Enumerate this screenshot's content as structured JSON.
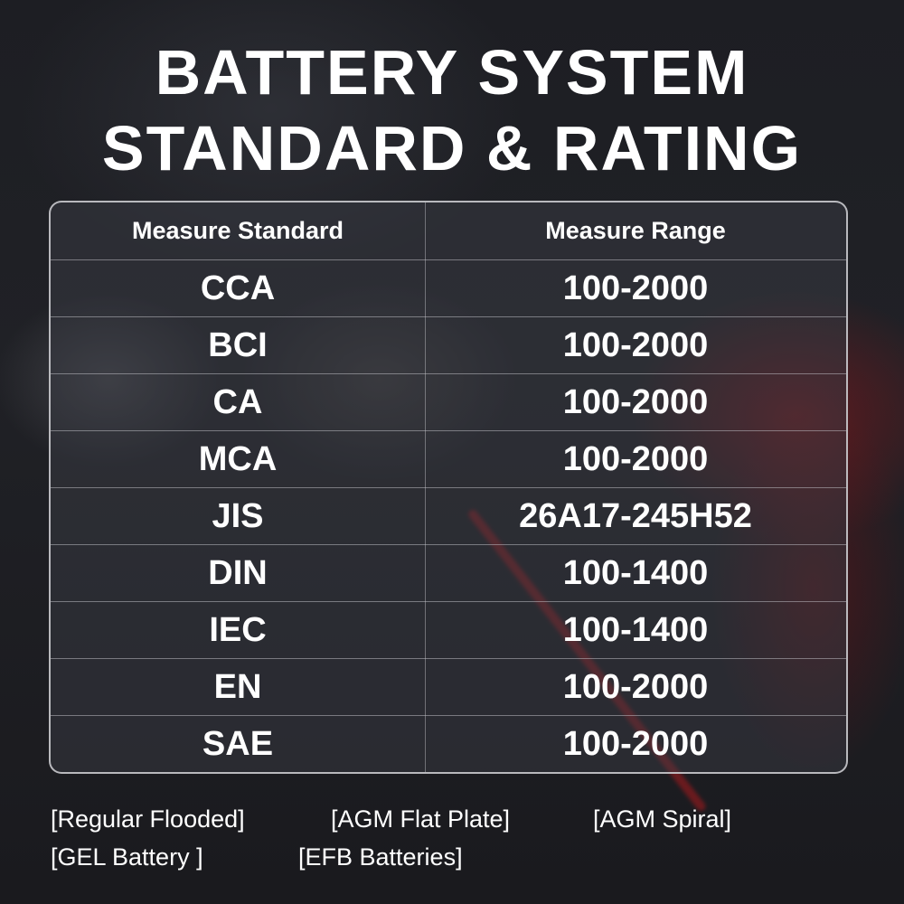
{
  "title": {
    "line1": "BATTERY SYSTEM",
    "line2": "STANDARD & RATING"
  },
  "table": {
    "headers": [
      "Measure Standard",
      "Measure Range"
    ],
    "rows": [
      [
        "CCA",
        "100-2000"
      ],
      [
        "BCI",
        "100-2000"
      ],
      [
        "CA",
        "100-2000"
      ],
      [
        "MCA",
        "100-2000"
      ],
      [
        "JIS",
        "26A17-245H52"
      ],
      [
        "DIN",
        "100-1400"
      ],
      [
        "IEC",
        "100-1400"
      ],
      [
        "EN",
        "100-2000"
      ],
      [
        "SAE",
        "100-2000"
      ]
    ]
  },
  "footer": {
    "battery_types": [
      "[Regular Flooded]",
      "[AGM Flat Plate]",
      "[AGM Spiral]",
      "[GEL Battery ]",
      "[EFB Batteries]"
    ]
  }
}
